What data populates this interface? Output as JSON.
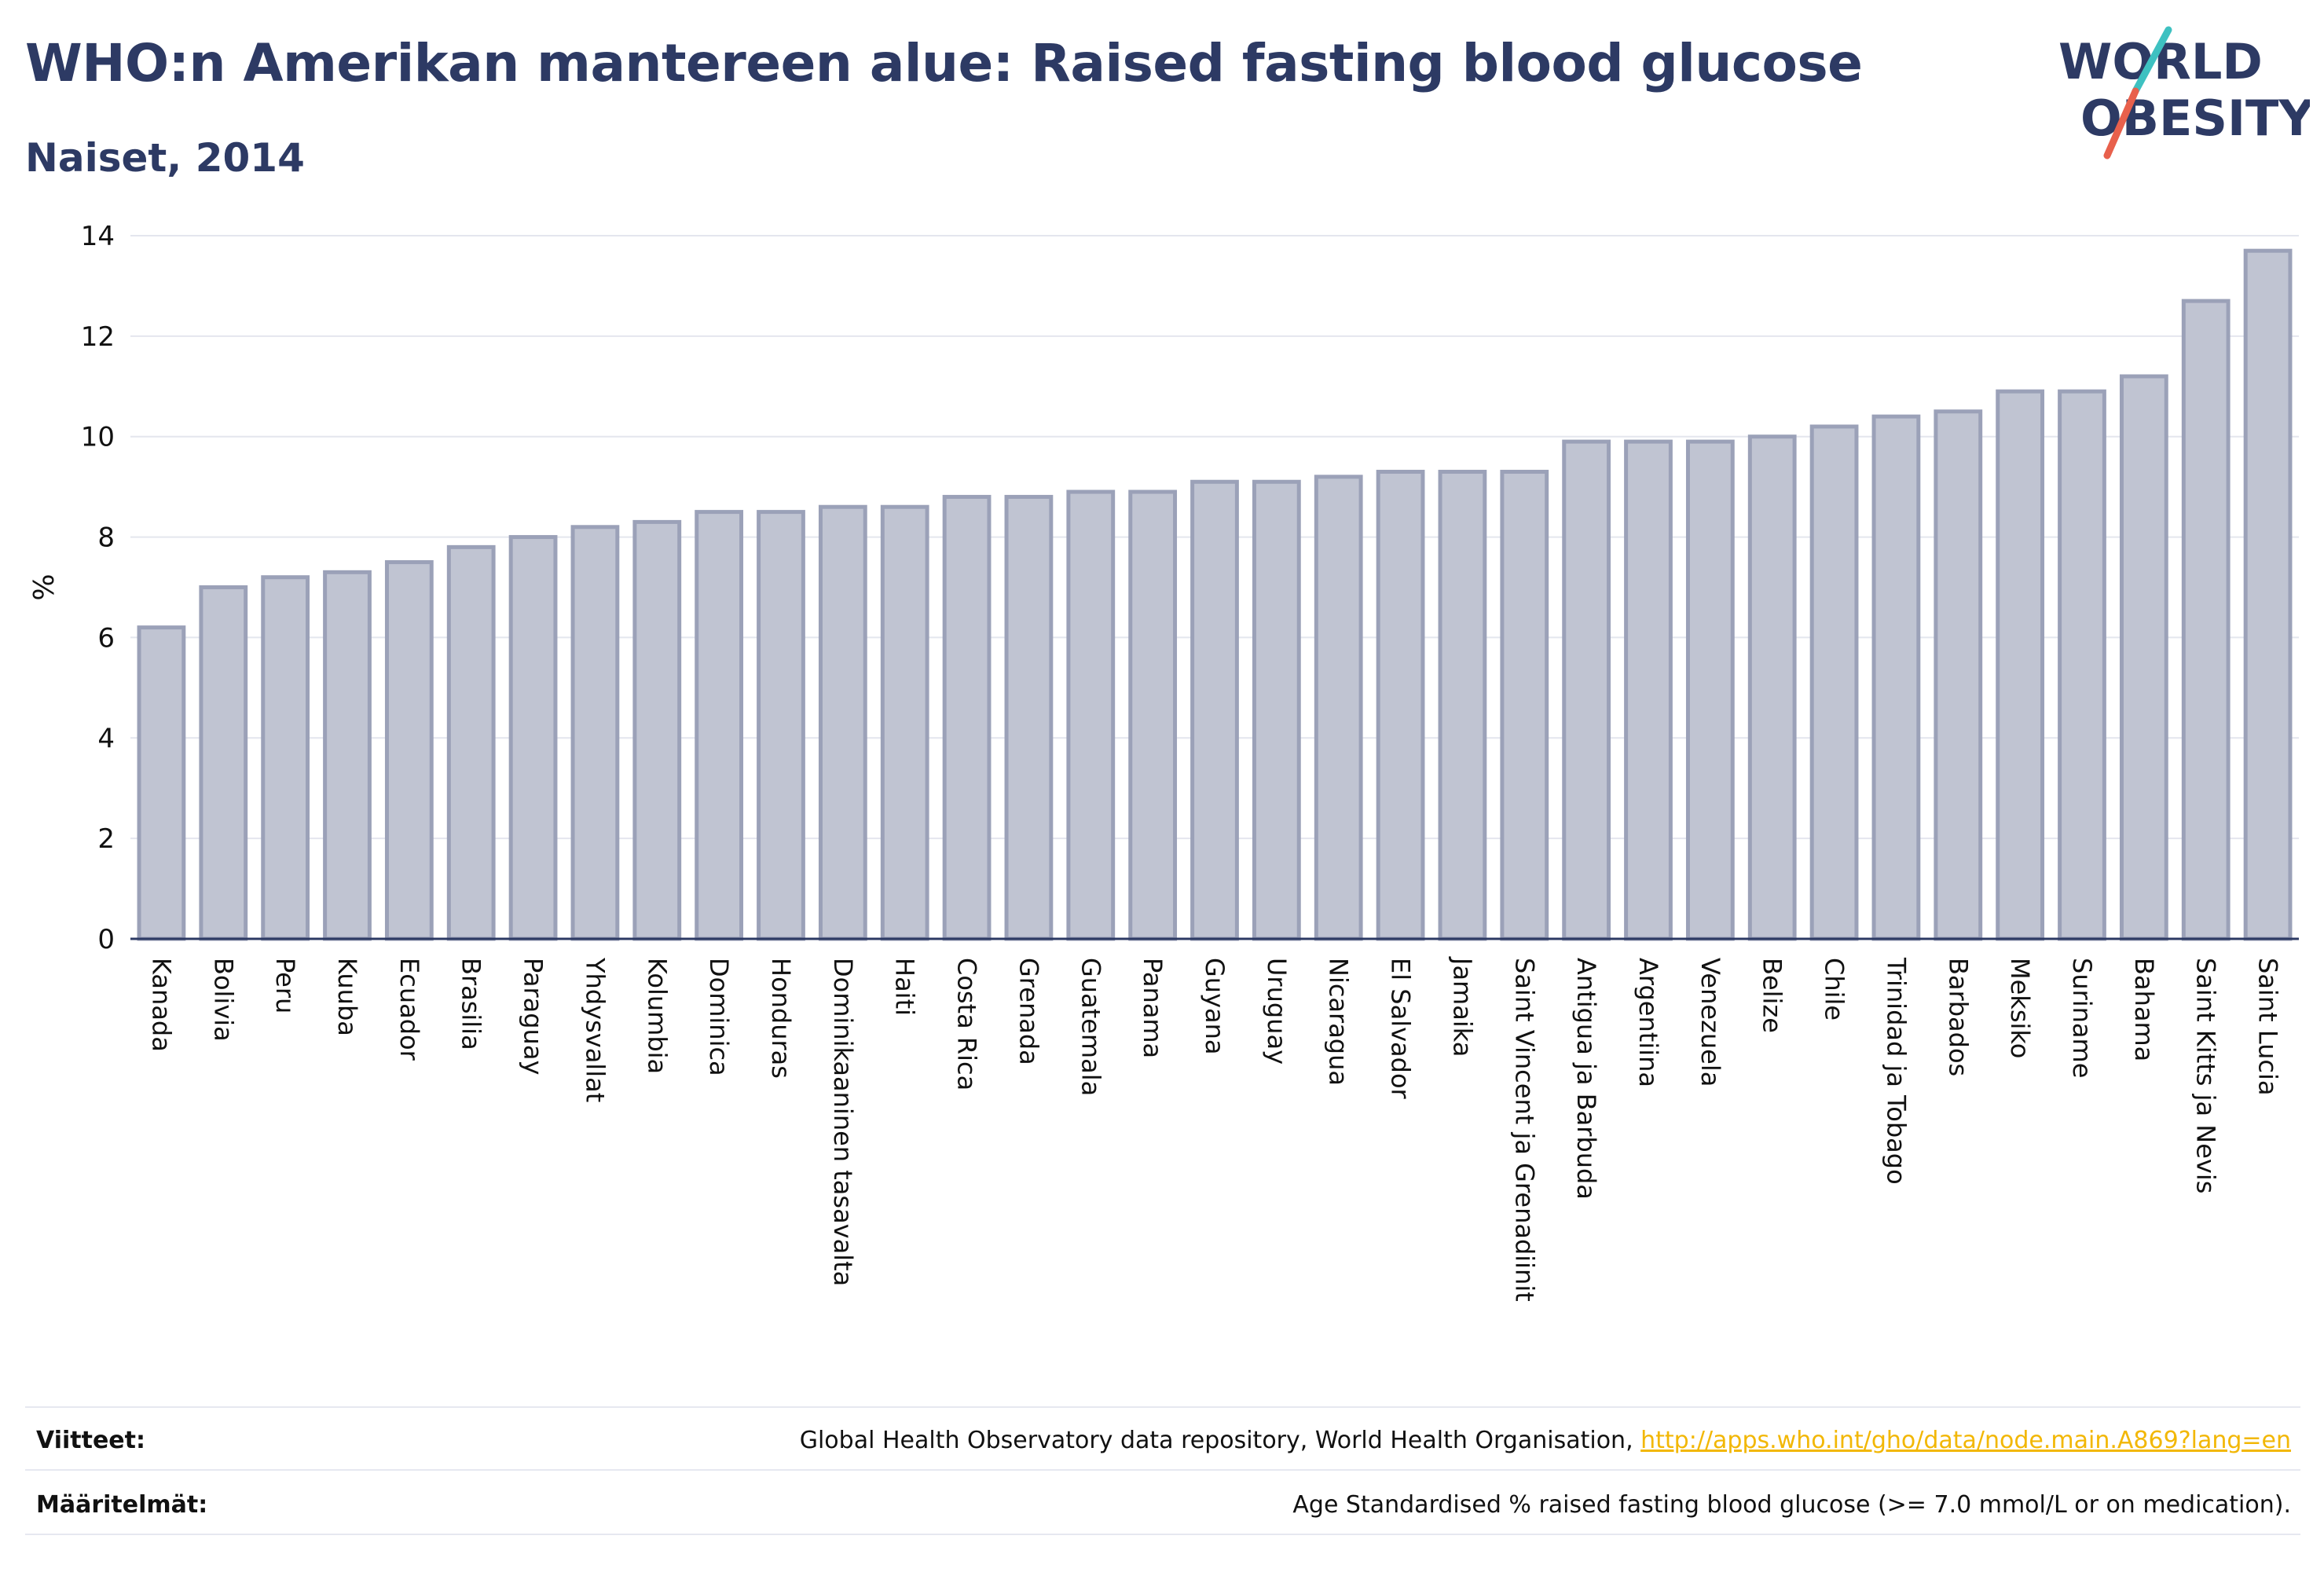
{
  "header": {
    "title": "WHO:n Amerikan mantereen alue: Raised fasting blood glucose",
    "subtitle": "Naiset, 2014"
  },
  "logo": {
    "line1": "WORLD",
    "line2": "OBESITY",
    "text_color": "#2d3a64",
    "slash_colors": [
      "#3ec1c1",
      "#e8604c"
    ]
  },
  "chart_data": {
    "type": "bar",
    "title": "WHO:n Amerikan mantereen alue: Raised fasting blood glucose",
    "subtitle": "Naiset, 2014",
    "xlabel": "",
    "ylabel": "%",
    "ylim": [
      0,
      14
    ],
    "yticks": [
      0,
      2,
      4,
      6,
      8,
      10,
      12,
      14
    ],
    "grid": true,
    "bar_fill": "#c0c4d2",
    "bar_stroke": "#9ba1b8",
    "categories": [
      "Kanada",
      "Bolivia",
      "Peru",
      "Kuuba",
      "Ecuador",
      "Brasilia",
      "Paraguay",
      "Yhdysvallat",
      "Kolumbia",
      "Dominica",
      "Honduras",
      "Dominikaaninen tasavalta",
      "Haiti",
      "Costa Rica",
      "Grenada",
      "Guatemala",
      "Panama",
      "Guyana",
      "Uruguay",
      "Nicaragua",
      "El Salvador",
      "Jamaika",
      "Saint Vincent ja Grenadiinit",
      "Antigua ja Barbuda",
      "Argentiina",
      "Venezuela",
      "Belize",
      "Chile",
      "Trinidad ja Tobago",
      "Barbados",
      "Meksiko",
      "Suriname",
      "Bahama",
      "Saint Kitts ja Nevis",
      "Saint Lucia"
    ],
    "values": [
      6.2,
      7.0,
      7.2,
      7.3,
      7.5,
      7.8,
      8.0,
      8.2,
      8.3,
      8.5,
      8.5,
      8.6,
      8.6,
      8.8,
      8.8,
      8.9,
      8.9,
      9.1,
      9.1,
      9.2,
      9.3,
      9.3,
      9.3,
      9.9,
      9.9,
      9.9,
      10.0,
      10.2,
      10.4,
      10.5,
      10.9,
      10.9,
      11.2,
      12.7,
      13.7
    ]
  },
  "footer": {
    "references_label": "Viitteet:",
    "references_text": "Global Health Observatory data repository, World Health Organisation, ",
    "references_link": "http://apps.who.int/gho/data/node.main.A869?lang=en",
    "definitions_label": "Määritelmät:",
    "definitions_text": "Age Standardised % raised fasting blood glucose (>= 7.0 mmol/L or on medication)."
  }
}
